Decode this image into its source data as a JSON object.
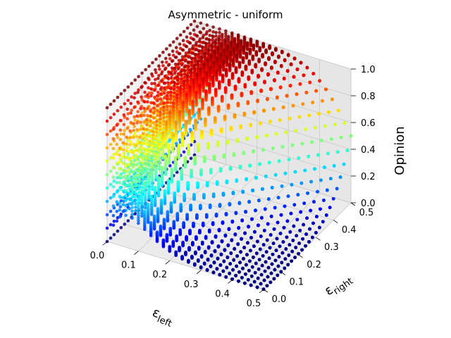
{
  "chart_data": {
    "type": "scatter",
    "projection": "3d",
    "title": "Asymmetric - uniform",
    "xlabel": "ε",
    "xlabel_subscript": "left",
    "ylabel": "ε",
    "ylabel_subscript": "right",
    "zlabel": "Opinion",
    "xlim": [
      0.0,
      0.5
    ],
    "ylim": [
      0.0,
      0.5
    ],
    "zlim": [
      0.0,
      1.0
    ],
    "xticks": [
      "0.0",
      "0.1",
      "0.2",
      "0.3",
      "0.4",
      "0.5"
    ],
    "yticks": [
      "0.0",
      "0.1",
      "0.2",
      "0.3",
      "0.4",
      "0.5"
    ],
    "zticks": [
      "0.0",
      "0.2",
      "0.4",
      "0.6",
      "0.8",
      "1.0"
    ],
    "colormap": "jet",
    "grid": true,
    "legend": "none",
    "description_of_surface": {
      "at_eps_left_0": "opinions spread uniformly from 0.0 to 1.0",
      "at_eps_right_0_and_eps_left_0.5": "opinions near 0.0",
      "at_eps_left_0.5_and_eps_right_0.5": "opinions near 0.5",
      "at_eps_left_0_and_eps_right_0.5": "opinions near 1.0"
    },
    "grid_resolution": 26
  },
  "colors": {
    "pane_left": "#f2f2f2",
    "pane_right": "#e6e6e6",
    "pane_floor": "#ebebeb",
    "gridline": "#c8c8c8"
  }
}
